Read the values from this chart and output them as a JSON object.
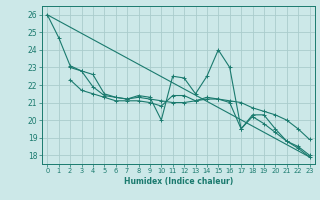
{
  "background_color": "#cce8e8",
  "grid_color": "#aacccc",
  "line_color": "#1a7a6e",
  "xlabel": "Humidex (Indice chaleur)",
  "xlim": [
    -0.5,
    23.5
  ],
  "ylim": [
    17.5,
    26.5
  ],
  "yticks": [
    18,
    19,
    20,
    21,
    22,
    23,
    24,
    25,
    26
  ],
  "xticks": [
    0,
    1,
    2,
    3,
    4,
    5,
    6,
    7,
    8,
    9,
    10,
    11,
    12,
    13,
    14,
    15,
    16,
    17,
    18,
    19,
    20,
    21,
    22,
    23
  ],
  "series": [
    {
      "x": [
        0,
        1,
        2,
        3,
        4,
        5,
        6,
        7,
        8,
        9,
        10,
        11,
        12,
        13,
        14,
        15,
        16,
        17,
        18,
        19,
        20,
        21,
        22,
        23
      ],
      "y": [
        26.0,
        24.7,
        23.1,
        22.8,
        21.9,
        21.4,
        21.3,
        21.2,
        21.4,
        21.3,
        20.0,
        22.5,
        22.4,
        21.5,
        22.5,
        24.0,
        23.0,
        19.5,
        20.3,
        20.3,
        19.5,
        18.8,
        18.4,
        17.9
      ],
      "has_markers": true
    },
    {
      "x": [
        2,
        3,
        4,
        5,
        6,
        7,
        8,
        9,
        10,
        11,
        12,
        13,
        14,
        15,
        16,
        17,
        18,
        19,
        20,
        21,
        22,
        23
      ],
      "y": [
        23.0,
        22.8,
        22.6,
        21.5,
        21.3,
        21.2,
        21.3,
        21.2,
        21.1,
        21.0,
        21.0,
        21.1,
        21.2,
        21.2,
        21.1,
        21.0,
        20.7,
        20.5,
        20.3,
        20.0,
        19.5,
        18.9
      ],
      "has_markers": true
    },
    {
      "x": [
        0,
        23
      ],
      "y": [
        26.0,
        17.9
      ],
      "has_markers": false
    },
    {
      "x": [
        2,
        3,
        4,
        5,
        6,
        7,
        8,
        9,
        10,
        11,
        12,
        13,
        14,
        15,
        16,
        17,
        18,
        19,
        20,
        21,
        22,
        23
      ],
      "y": [
        22.3,
        21.7,
        21.5,
        21.3,
        21.1,
        21.1,
        21.1,
        21.0,
        20.8,
        21.4,
        21.4,
        21.1,
        21.3,
        21.2,
        21.0,
        19.5,
        20.2,
        19.8,
        19.3,
        18.8,
        18.5,
        18.0
      ],
      "has_markers": true
    }
  ]
}
